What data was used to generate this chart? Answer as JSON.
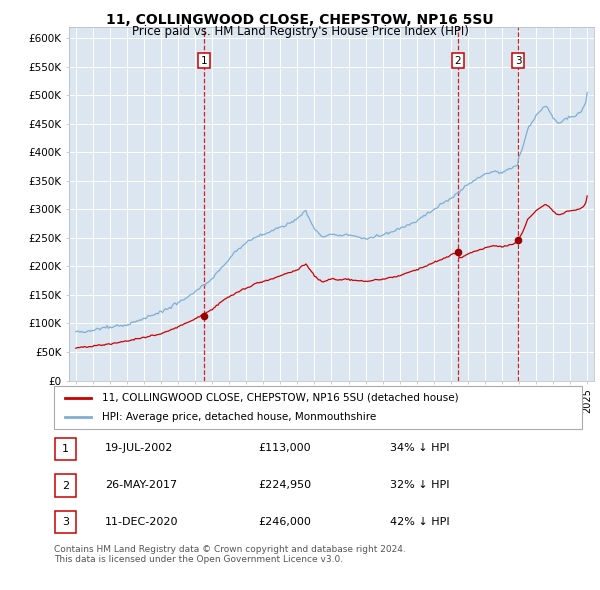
{
  "title": "11, COLLINGWOOD CLOSE, CHEPSTOW, NP16 5SU",
  "subtitle": "Price paid vs. HM Land Registry's House Price Index (HPI)",
  "background_color": "#dce6f0",
  "plot_bg_color": "#dce6f0",
  "hpi_color": "#7fafd4",
  "price_color": "#cc0000",
  "marker_color": "#990000",
  "vline_color": "#cc0000",
  "ylim": [
    0,
    620000
  ],
  "yticks": [
    0,
    50000,
    100000,
    150000,
    200000,
    250000,
    300000,
    350000,
    400000,
    450000,
    500000,
    550000,
    600000
  ],
  "transactions": [
    {
      "label": "1",
      "date_str": "19-JUL-2002",
      "year": 2002.54,
      "price": 113000
    },
    {
      "label": "2",
      "date_str": "26-MAY-2017",
      "year": 2017.4,
      "price": 224950
    },
    {
      "label": "3",
      "date_str": "11-DEC-2020",
      "year": 2020.94,
      "price": 246000
    }
  ],
  "legend_line1": "11, COLLINGWOOD CLOSE, CHEPSTOW, NP16 5SU (detached house)",
  "legend_line2": "HPI: Average price, detached house, Monmouthshire",
  "table_rows": [
    {
      "num": "1",
      "date": "19-JUL-2002",
      "price": "£113,000",
      "pct": "34% ↓ HPI"
    },
    {
      "num": "2",
      "date": "26-MAY-2017",
      "price": "£224,950",
      "pct": "32% ↓ HPI"
    },
    {
      "num": "3",
      "date": "11-DEC-2020",
      "price": "£246,000",
      "pct": "42% ↓ HPI"
    }
  ],
  "footnote": "Contains HM Land Registry data © Crown copyright and database right 2024.\nThis data is licensed under the Open Government Licence v3.0."
}
